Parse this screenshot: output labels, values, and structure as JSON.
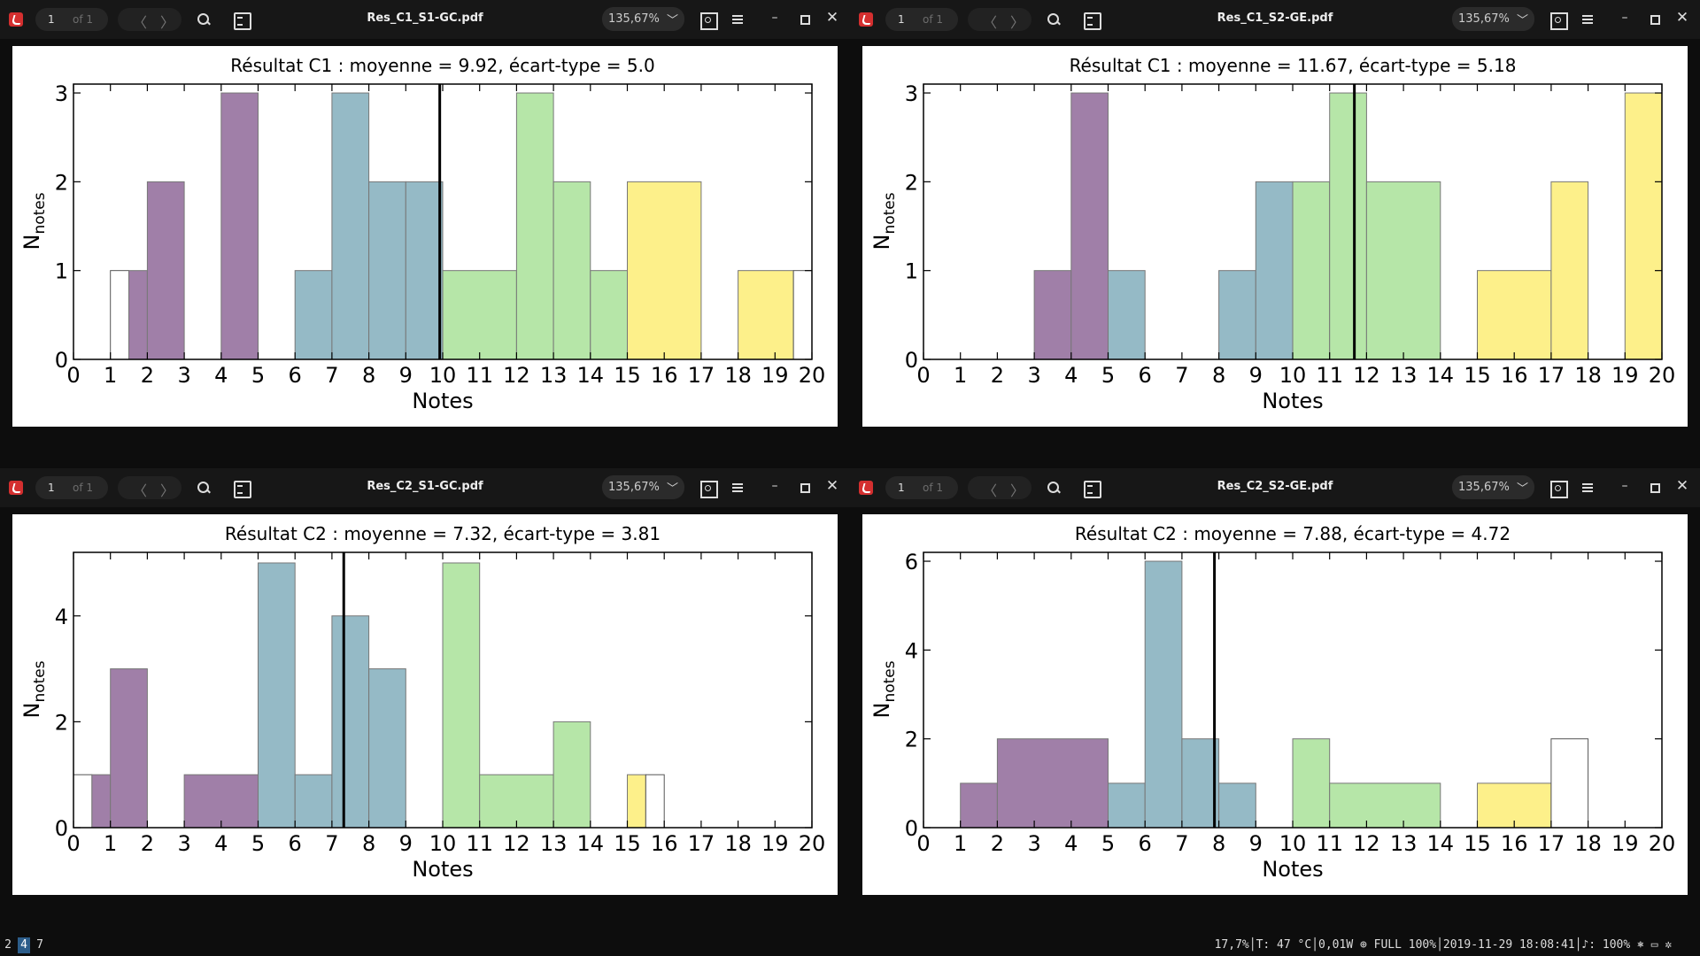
{
  "windows": [
    {
      "file": "Res_C1_S1-GC.pdf",
      "page": "1",
      "of": "of 1",
      "zoom": "135,67%",
      "chart": {
        "title": "Résultat C1 : moyenne = 9.92, écart-type = 5.0",
        "ylim": 3.1,
        "yticks": [
          0,
          1,
          2,
          3
        ],
        "mean": 9.92,
        "bins": [
          [
            1,
            1.5,
            1,
            "#ffffff"
          ],
          [
            1.5,
            2,
            1,
            "#a07fa8"
          ],
          [
            2,
            3,
            2,
            "#a07fa8"
          ],
          [
            4,
            5,
            3,
            "#a07fa8"
          ],
          [
            6,
            7,
            1,
            "#95bac6"
          ],
          [
            7,
            8,
            3,
            "#95bac6"
          ],
          [
            8,
            9,
            2,
            "#95bac6"
          ],
          [
            9,
            10,
            2,
            "#95bac6"
          ],
          [
            10,
            12,
            1,
            "#b6e6a8"
          ],
          [
            12,
            13,
            3,
            "#b6e6a8"
          ],
          [
            13,
            14,
            2,
            "#b6e6a8"
          ],
          [
            14,
            15,
            1,
            "#b6e6a8"
          ],
          [
            15,
            17,
            2,
            "#fdf08a"
          ],
          [
            18,
            19.5,
            1,
            "#fdf08a"
          ],
          [
            19.5,
            20,
            1,
            "#ffffff"
          ]
        ]
      }
    },
    {
      "file": "Res_C1_S2-GE.pdf",
      "page": "1",
      "of": "of 1",
      "zoom": "135,67%",
      "chart": {
        "title": "Résultat C1 : moyenne = 11.67, écart-type = 5.18",
        "ylim": 3.1,
        "yticks": [
          0,
          1,
          2,
          3
        ],
        "mean": 11.67,
        "bins": [
          [
            3,
            4,
            1,
            "#a07fa8"
          ],
          [
            4,
            5,
            3,
            "#a07fa8"
          ],
          [
            5,
            6,
            1,
            "#95bac6"
          ],
          [
            8,
            9,
            1,
            "#95bac6"
          ],
          [
            9,
            10,
            2,
            "#95bac6"
          ],
          [
            10,
            11,
            2,
            "#b6e6a8"
          ],
          [
            11,
            12,
            3,
            "#b6e6a8"
          ],
          [
            12,
            14,
            2,
            "#b6e6a8"
          ],
          [
            15,
            17,
            1,
            "#fdf08a"
          ],
          [
            17,
            18,
            2,
            "#fdf08a"
          ],
          [
            19,
            20,
            3,
            "#fdf08a"
          ]
        ]
      }
    },
    {
      "file": "Res_C2_S1-GC.pdf",
      "page": "1",
      "of": "of 1",
      "zoom": "135,67%",
      "chart": {
        "title": "Résultat C2 : moyenne = 7.32, écart-type = 3.81",
        "ylim": 5.2,
        "yticks": [
          0,
          2,
          4
        ],
        "mean": 7.32,
        "bins": [
          [
            0,
            0.5,
            1,
            "#ffffff"
          ],
          [
            0.5,
            1,
            1,
            "#a07fa8"
          ],
          [
            1,
            2,
            3,
            "#a07fa8"
          ],
          [
            3,
            5,
            1,
            "#a07fa8"
          ],
          [
            5,
            6,
            5,
            "#95bac6"
          ],
          [
            6,
            7,
            1,
            "#95bac6"
          ],
          [
            7,
            8,
            4,
            "#95bac6"
          ],
          [
            8,
            9,
            3,
            "#95bac6"
          ],
          [
            10,
            11,
            5,
            "#b6e6a8"
          ],
          [
            11,
            13,
            1,
            "#b6e6a8"
          ],
          [
            13,
            14,
            2,
            "#b6e6a8"
          ],
          [
            15,
            15.5,
            1,
            "#fdf08a"
          ],
          [
            15.5,
            16,
            1,
            "#ffffff"
          ]
        ]
      }
    },
    {
      "file": "Res_C2_S2-GE.pdf",
      "page": "1",
      "of": "of 1",
      "zoom": "135,67%",
      "chart": {
        "title": "Résultat C2 : moyenne = 7.88, écart-type = 4.72",
        "ylim": 6.2,
        "yticks": [
          0,
          2,
          4,
          6
        ],
        "mean": 7.88,
        "bins": [
          [
            1,
            2,
            1,
            "#a07fa8"
          ],
          [
            2,
            5,
            2,
            "#a07fa8"
          ],
          [
            5,
            6,
            1,
            "#95bac6"
          ],
          [
            6,
            7,
            6,
            "#95bac6"
          ],
          [
            7,
            8,
            2,
            "#95bac6"
          ],
          [
            8,
            9,
            1,
            "#95bac6"
          ],
          [
            10,
            11,
            2,
            "#b6e6a8"
          ],
          [
            11,
            14,
            1,
            "#b6e6a8"
          ],
          [
            15,
            17,
            1,
            "#fdf08a"
          ],
          [
            17,
            18,
            2,
            "#ffffff"
          ]
        ]
      }
    }
  ],
  "axis": {
    "xlabel": "Notes",
    "ylabel": "N",
    "ylabel_sub": "notes",
    "xticks": [
      0,
      1,
      2,
      3,
      4,
      5,
      6,
      7,
      8,
      9,
      10,
      11,
      12,
      13,
      14,
      15,
      16,
      17,
      18,
      19,
      20
    ]
  },
  "statusbar": {
    "workspaces": [
      "2",
      "4",
      "7"
    ],
    "active_workspace": "4",
    "status_text": "17,7%│T: 47 °C│0,01W ⊕ FULL 100%│2019-11-29 18:08:41│♪: 100% ⎈ ▭ ✲ "
  }
}
